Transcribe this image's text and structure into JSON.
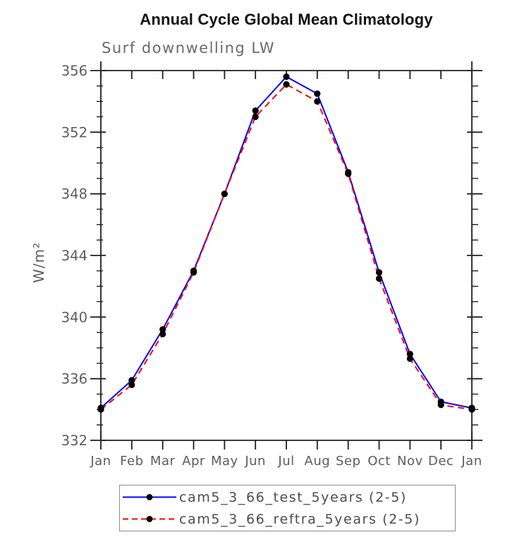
{
  "chart_data": {
    "type": "line",
    "title": "Annual Cycle Global Mean Climatology",
    "subtitle": "Surf downwelling LW",
    "xlabel": "",
    "ylabel": "W/m²",
    "categories": [
      "Jan",
      "Feb",
      "Mar",
      "Apr",
      "May",
      "Jun",
      "Jul",
      "Aug",
      "Sep",
      "Oct",
      "Nov",
      "Dec",
      "Jan"
    ],
    "ylim": [
      332,
      356
    ],
    "y_major_ticks": [
      332,
      336,
      340,
      344,
      348,
      352,
      356
    ],
    "y_minor_step": 1,
    "grid": false,
    "legend_position": "bottom-box",
    "series": [
      {
        "name": "cam5_3_66_test_5years (2-5)",
        "color": "#0000ff",
        "line_style": "solid",
        "marker": "black-dot",
        "values": [
          334.1,
          335.9,
          339.2,
          343.0,
          348.0,
          353.4,
          355.6,
          354.5,
          349.4,
          342.9,
          337.6,
          334.5,
          334.1
        ]
      },
      {
        "name": "cam5_3_66_reftra_5years (2-5)",
        "color": "#ff0000",
        "line_style": "dashed",
        "marker": "black-dot",
        "values": [
          334.0,
          335.6,
          338.9,
          342.9,
          348.0,
          353.0,
          355.1,
          354.0,
          349.3,
          342.5,
          337.3,
          334.3,
          334.0
        ]
      }
    ],
    "colors": {
      "marker": "#000000",
      "axis": "#1f1f1f",
      "tick_label": "#5d5d5d",
      "subtitle_text": "#6b6b6b",
      "legend_text": "#4d4d4d",
      "legend_border": "#8c8c8c"
    }
  }
}
